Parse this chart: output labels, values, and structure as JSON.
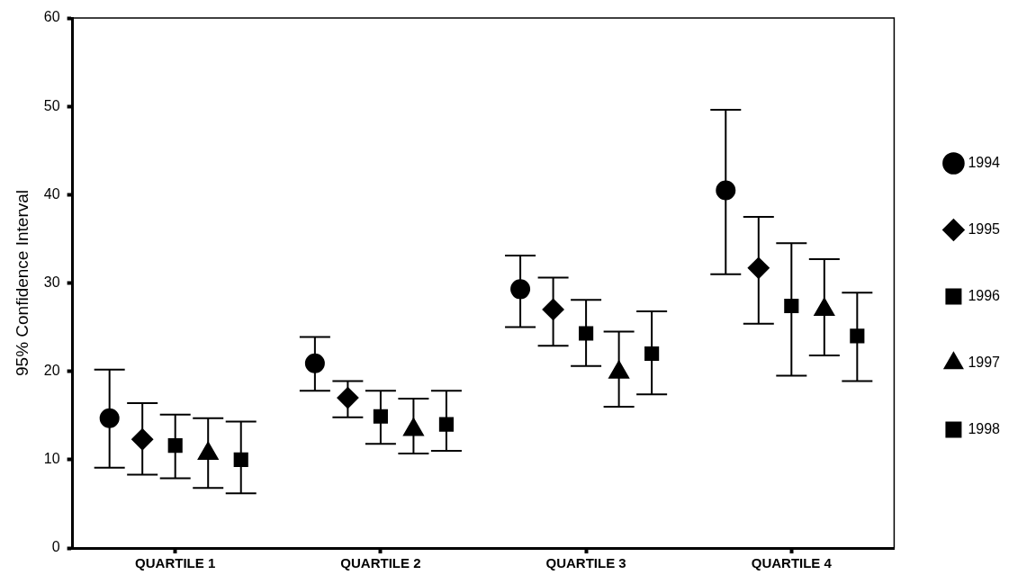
{
  "chart_data": {
    "type": "scatter",
    "ylabel": "95% Confidence Interval",
    "categories": [
      "QUARTILE 1",
      "QUARTILE 2",
      "QUARTILE 3",
      "QUARTILE 4"
    ],
    "ylim": [
      0,
      60
    ],
    "yticks": [
      0,
      10,
      20,
      30,
      40,
      50,
      60
    ],
    "grid": false,
    "legend": "right",
    "series": [
      {
        "name": "1994",
        "color": "#000000",
        "marker": "circle",
        "values": [
          14.7,
          20.9,
          29.3,
          40.5
        ],
        "errors": [
          [
            9.1,
            20.2
          ],
          [
            17.8,
            23.9
          ],
          [
            25.0,
            33.1
          ],
          [
            31.0,
            49.6
          ]
        ]
      },
      {
        "name": "1995",
        "color": "#000000",
        "marker": "diamond",
        "values": [
          12.3,
          17.0,
          27.0,
          31.7
        ],
        "errors": [
          [
            8.3,
            16.4
          ],
          [
            14.8,
            18.9
          ],
          [
            22.9,
            30.6
          ],
          [
            25.4,
            37.5
          ]
        ]
      },
      {
        "name": "1996",
        "color": "#000000",
        "marker": "square",
        "values": [
          11.6,
          14.9,
          24.3,
          27.4
        ],
        "errors": [
          [
            7.9,
            15.1
          ],
          [
            11.8,
            17.8
          ],
          [
            20.6,
            28.1
          ],
          [
            19.5,
            34.5
          ]
        ]
      },
      {
        "name": "1997",
        "color": "#000000",
        "marker": "triangle",
        "values": [
          10.7,
          13.4,
          19.9,
          27.0
        ],
        "errors": [
          [
            6.8,
            14.7
          ],
          [
            10.7,
            16.9
          ],
          [
            16.0,
            24.5
          ],
          [
            21.8,
            32.7
          ]
        ]
      },
      {
        "name": "1998",
        "color": "#000000",
        "marker": "square",
        "values": [
          10.0,
          14.0,
          22.0,
          24.0
        ],
        "errors": [
          [
            6.2,
            14.3
          ],
          [
            11.0,
            17.8
          ],
          [
            17.4,
            26.8
          ],
          [
            18.9,
            28.9
          ]
        ]
      }
    ]
  }
}
